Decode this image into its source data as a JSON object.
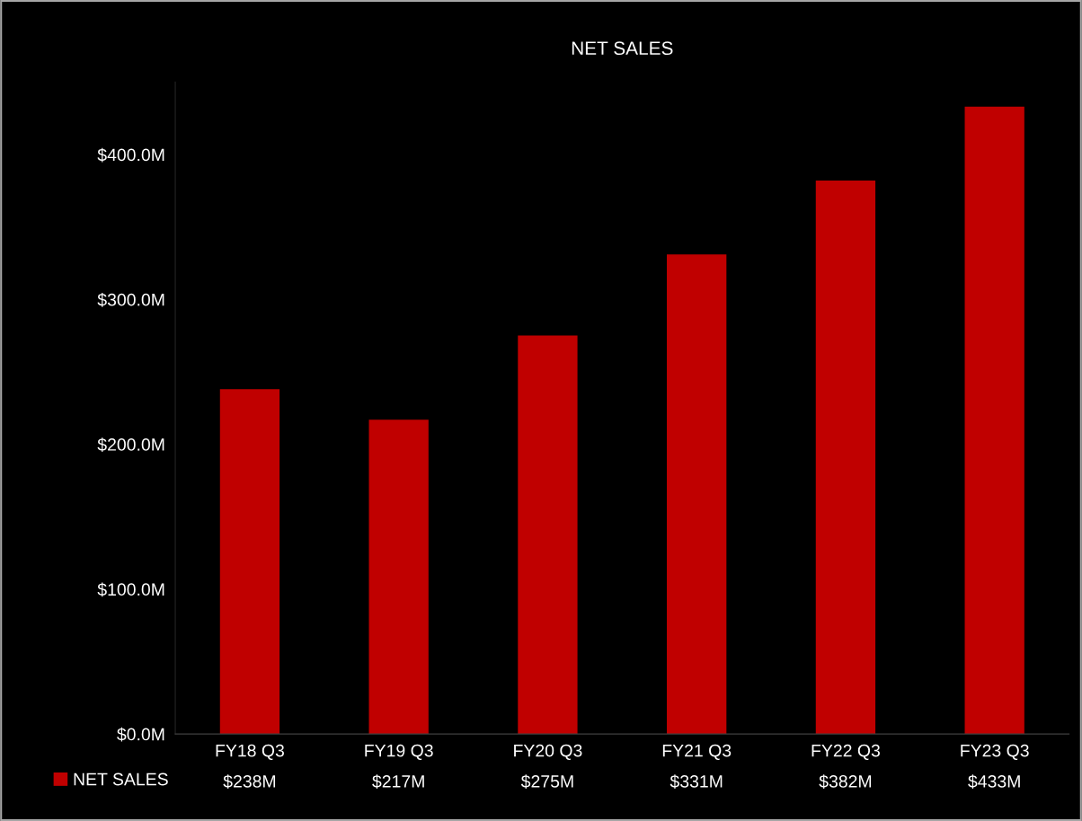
{
  "chart_data": {
    "type": "bar",
    "title": "NET SALES",
    "categories": [
      "FY18 Q3",
      "FY19 Q3",
      "FY20 Q3",
      "FY21 Q3",
      "FY22 Q3",
      "FY23 Q3"
    ],
    "series": [
      {
        "name": "NET SALES",
        "color": "#c00000",
        "values": [
          238,
          217,
          275,
          331,
          382,
          433
        ],
        "value_labels": [
          "$238M",
          "$217M",
          "$275M",
          "$331M",
          "$382M",
          "$433M"
        ]
      }
    ],
    "ylim": [
      0,
      450
    ],
    "yticks": [
      {
        "value": 0,
        "label": "$0.0M"
      },
      {
        "value": 100,
        "label": "$100.0M"
      },
      {
        "value": 200,
        "label": "$200.0M"
      },
      {
        "value": 300,
        "label": "$300.0M"
      },
      {
        "value": 400,
        "label": "$400.0M"
      }
    ],
    "grid": false,
    "legend": "bottom left"
  }
}
